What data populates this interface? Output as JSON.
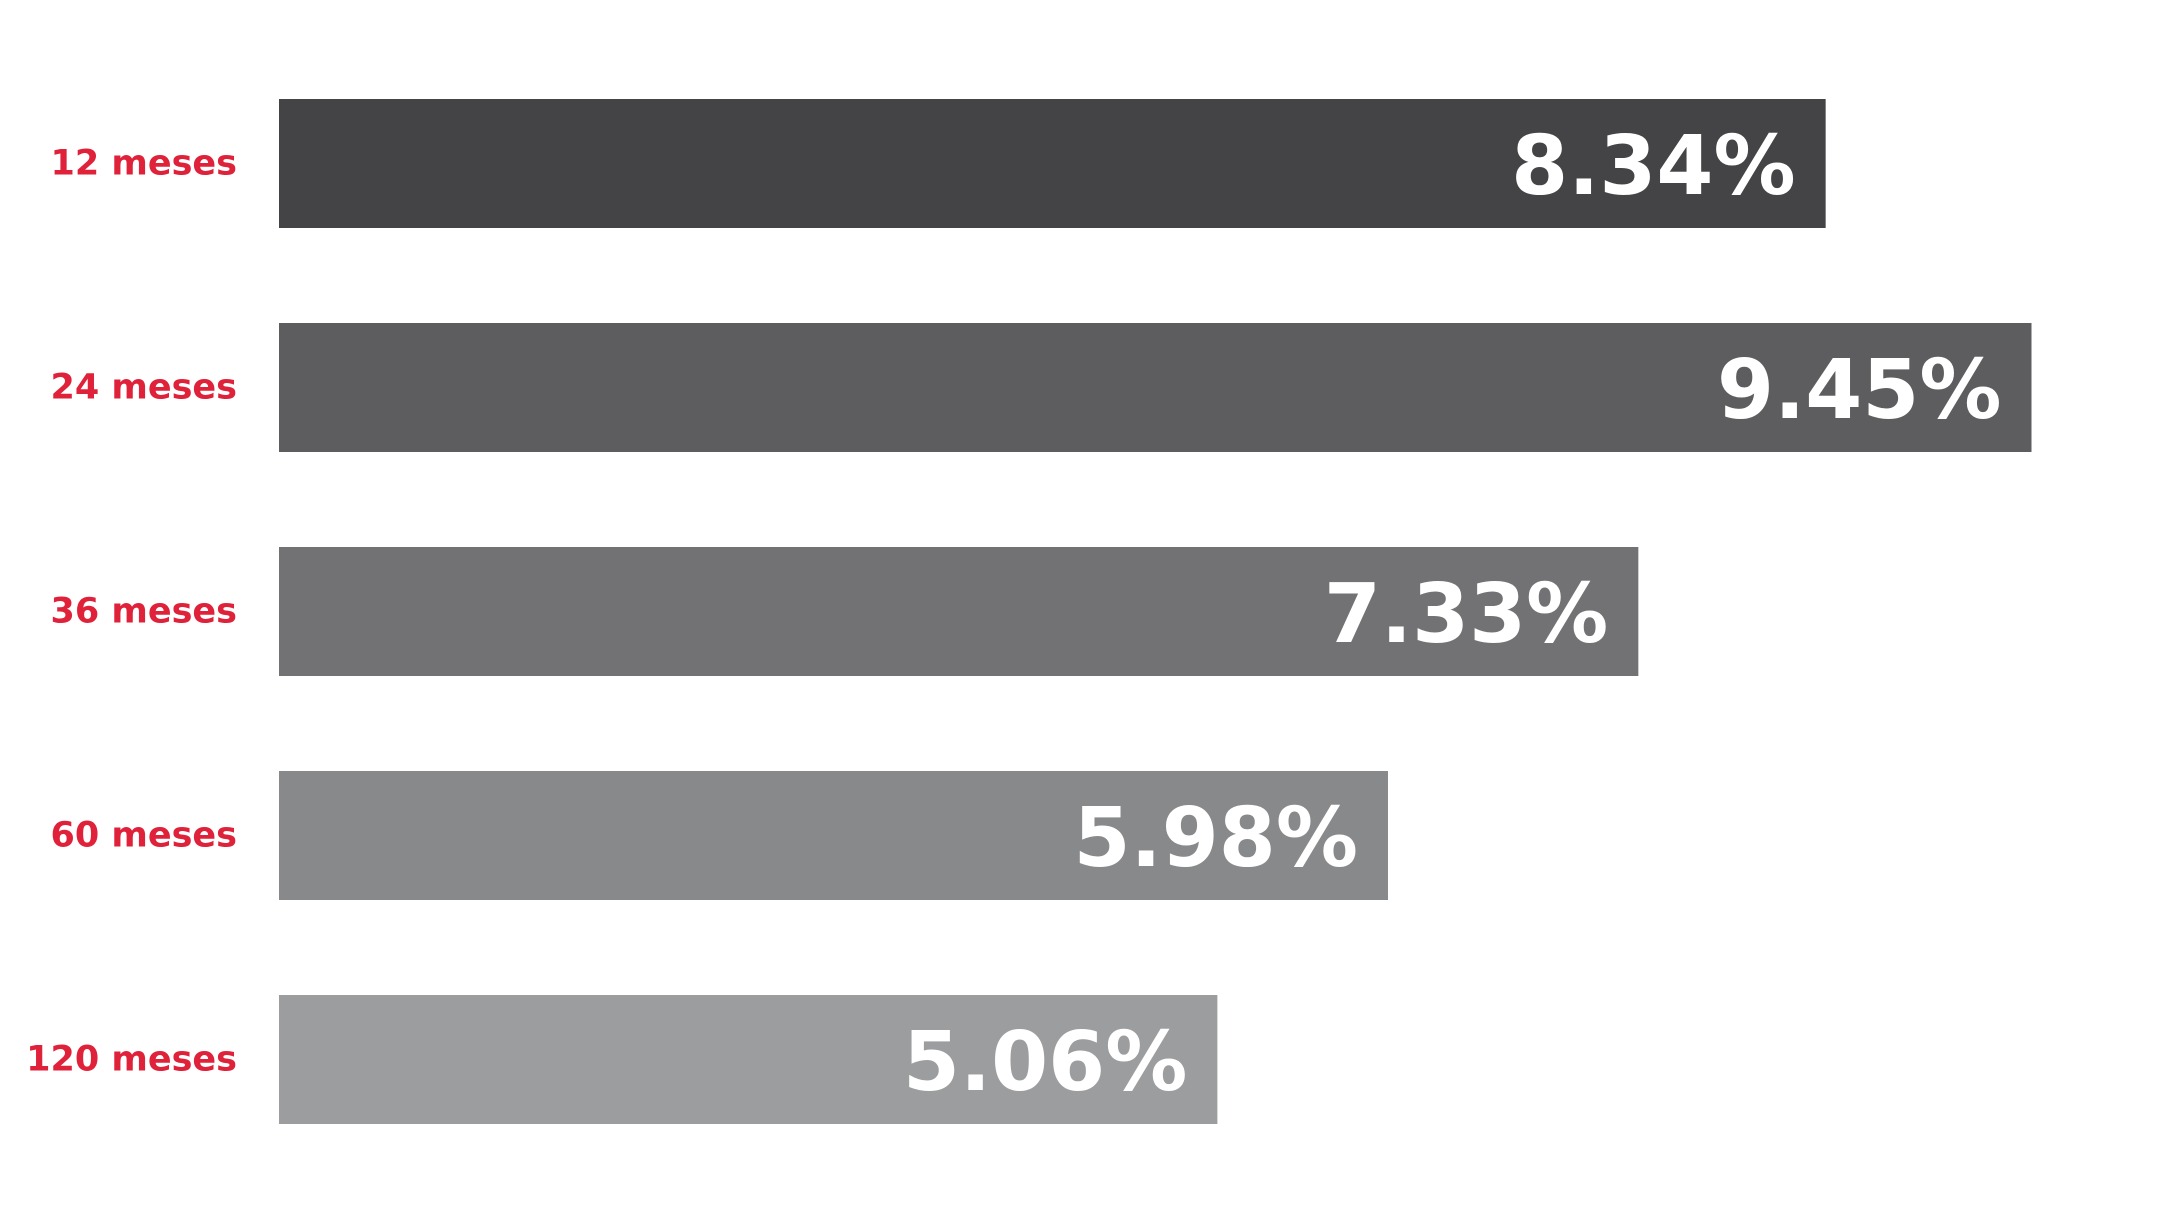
{
  "chart_data": {
    "type": "bar",
    "orientation": "horizontal",
    "categories": [
      "12 meses",
      "24 meses",
      "36 meses",
      "60 meses",
      "120 meses"
    ],
    "values": [
      8.34,
      9.45,
      7.33,
      5.98,
      5.06
    ],
    "value_labels": [
      "8.34%",
      "9.45%",
      "7.33%",
      "5.98%",
      "5.06%"
    ],
    "value_unit": "%",
    "bar_colors": [
      "#444446",
      "#5d5d5f",
      "#727275",
      "#88898b",
      "#9c9d9f"
    ],
    "category_label_color": "#e0213a",
    "value_label_color": "#ffffff",
    "title": "",
    "xlabel": "",
    "ylabel": "",
    "grid": false,
    "legend": "none"
  }
}
